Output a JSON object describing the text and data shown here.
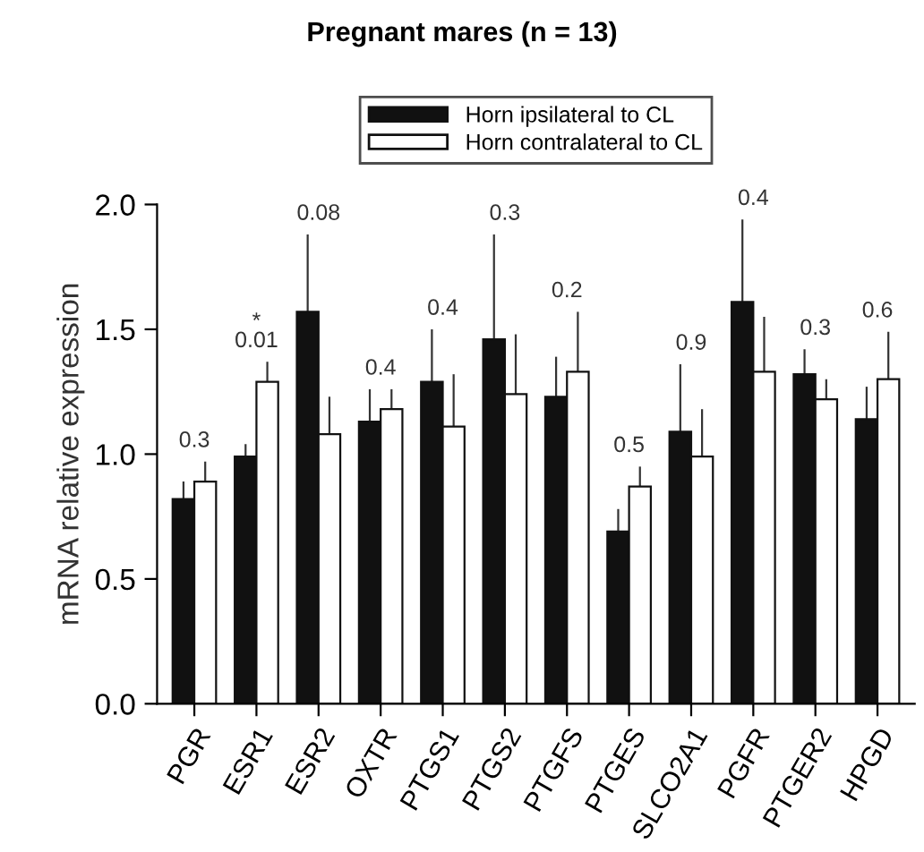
{
  "chart_data": {
    "type": "bar",
    "title": "Pregnant mares (n = 13)",
    "ylabel": "mRNA relative expression",
    "categories": [
      "PGR",
      "ESR1",
      "ESR2",
      "OXTR",
      "PTGS1",
      "PTGS2",
      "PTGFS",
      "PTGES",
      "SLCO2A1",
      "PGFR",
      "PTGER2",
      "HPGD"
    ],
    "series": [
      {
        "name": "Horn ipsilateral to CL",
        "color": "#111111",
        "values": [
          0.82,
          0.99,
          1.57,
          1.13,
          1.29,
          1.46,
          1.23,
          0.69,
          1.09,
          1.61,
          1.32,
          1.14
        ],
        "errors": [
          [
            0.82,
            0.89
          ],
          [
            0.99,
            1.04
          ],
          [
            1.57,
            1.88
          ],
          [
            1.13,
            1.26
          ],
          [
            1.29,
            1.5
          ],
          [
            1.46,
            1.88
          ],
          [
            1.23,
            1.39
          ],
          [
            0.69,
            0.78
          ],
          [
            1.09,
            1.36
          ],
          [
            1.61,
            1.94
          ],
          [
            1.32,
            1.42
          ],
          [
            1.14,
            1.27
          ]
        ]
      },
      {
        "name": "Horn contralateral to CL",
        "color": "#ffffff",
        "values": [
          0.89,
          1.29,
          1.08,
          1.18,
          1.11,
          1.24,
          1.33,
          0.87,
          0.99,
          1.33,
          1.22,
          1.3
        ],
        "errors": [
          [
            0.89,
            0.97
          ],
          [
            1.29,
            1.37
          ],
          [
            1.08,
            1.23
          ],
          [
            1.18,
            1.26
          ],
          [
            1.11,
            1.32
          ],
          [
            1.24,
            1.48
          ],
          [
            1.33,
            1.57
          ],
          [
            0.87,
            0.95
          ],
          [
            0.99,
            1.18
          ],
          [
            1.33,
            1.55
          ],
          [
            1.22,
            1.3
          ],
          [
            1.3,
            1.49
          ]
        ]
      }
    ],
    "annotations": [
      "0.3",
      "*\n0.01",
      "0.08",
      "0.4",
      "0.4",
      "0.3",
      "0.2",
      "0.5",
      "0.9",
      "0.4",
      "0.3",
      "0.6"
    ],
    "ylim": [
      0,
      2
    ],
    "yticks": [
      {
        "value": 0,
        "label": "0.0"
      },
      {
        "value": 0.5,
        "label": "0.5"
      },
      {
        "value": 1,
        "label": "1.0"
      },
      {
        "value": 1.5,
        "label": "1.5"
      },
      {
        "value": 2,
        "label": "2.0"
      }
    ],
    "legend": "top",
    "grid": false
  }
}
